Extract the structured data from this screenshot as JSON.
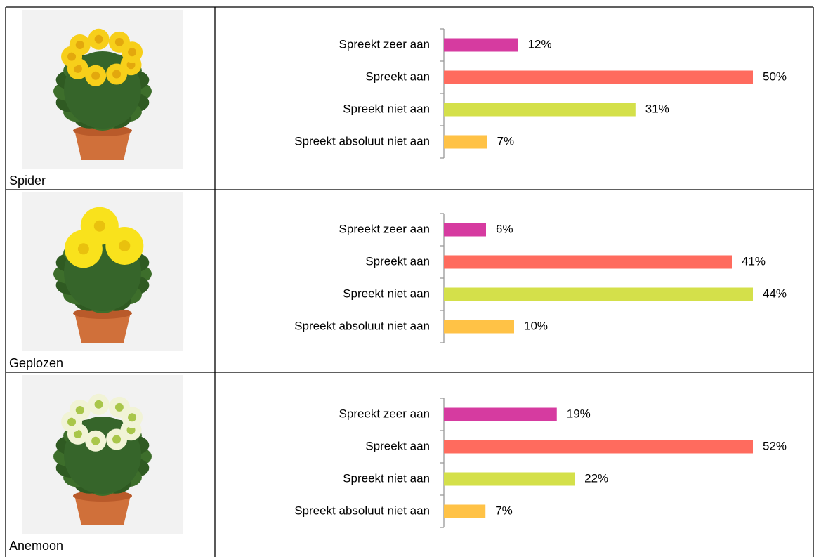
{
  "table": {
    "rows": [
      {
        "label": "Spider",
        "chart": {
          "type": "bar",
          "orientation": "horizontal",
          "categories": [
            "Spreekt zeer aan",
            "Spreekt aan",
            "Spreekt niet aan",
            "Spreekt absoluut niet aan"
          ],
          "values": [
            12,
            50,
            31,
            7
          ],
          "value_labels": [
            "12%",
            "50%",
            "31%",
            "7%"
          ],
          "colors": [
            "#d63ba0",
            "#ff6b5e",
            "#d4e04a",
            "#ffc246"
          ]
        }
      },
      {
        "label": "Geplozen",
        "chart": {
          "type": "bar",
          "orientation": "horizontal",
          "categories": [
            "Spreekt zeer aan",
            "Spreekt aan",
            "Spreekt niet aan",
            "Spreekt absoluut niet aan"
          ],
          "values": [
            6,
            41,
            44,
            10
          ],
          "value_labels": [
            "6%",
            "41%",
            "44%",
            "10%"
          ],
          "colors": [
            "#d63ba0",
            "#ff6b5e",
            "#d4e04a",
            "#ffc246"
          ]
        }
      },
      {
        "label": "Anemoon",
        "chart": {
          "type": "bar",
          "orientation": "horizontal",
          "categories": [
            "Spreekt zeer aan",
            "Spreekt aan",
            "Spreekt niet aan",
            "Spreekt absoluut niet aan"
          ],
          "values": [
            19,
            52,
            22,
            7
          ],
          "value_labels": [
            "19%",
            "52%",
            "22%",
            "7%"
          ],
          "colors": [
            "#d63ba0",
            "#ff6b5e",
            "#d4e04a",
            "#ffc246"
          ]
        }
      }
    ]
  }
}
